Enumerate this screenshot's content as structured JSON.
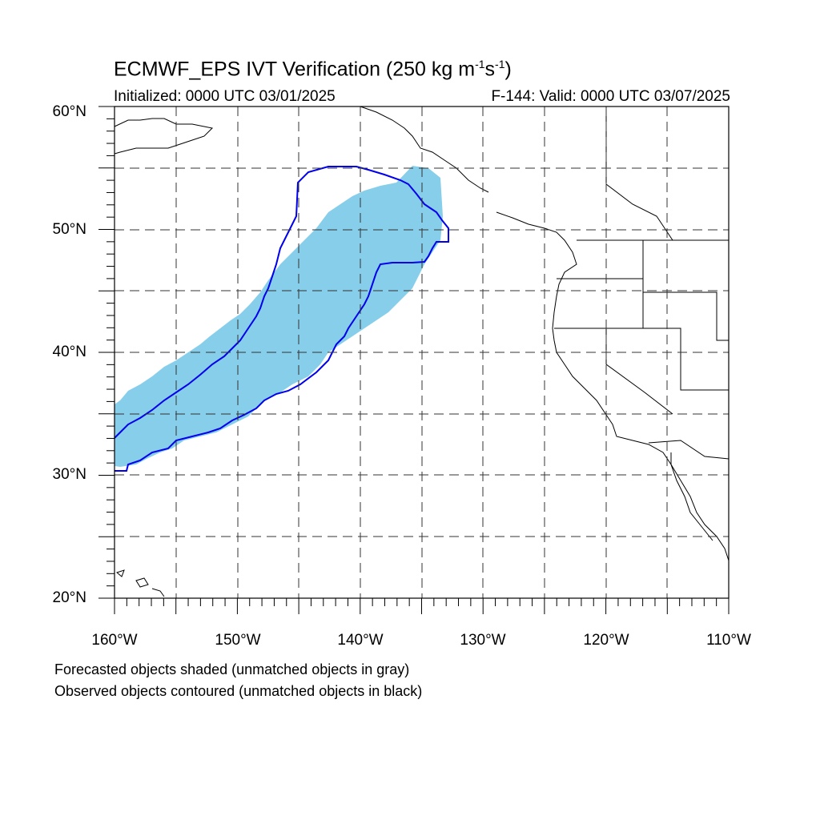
{
  "title": {
    "main": "ECMWF_EPS IVT Verification (250 kg m",
    "exp1": "-1",
    "mid": "s",
    "exp2": "-1",
    "end": ")"
  },
  "subtitle_left": "Initialized: 0000 UTC 03/01/2025",
  "subtitle_right": "F-144: Valid: 0000 UTC 03/07/2025",
  "caption": {
    "line1": "Forecasted objects shaded (unmatched objects in gray)",
    "line2": "Observed objects contoured (unmatched objects in black)"
  },
  "map": {
    "lon_range": [
      -160,
      -110
    ],
    "lat_range": [
      20,
      60
    ],
    "lat_labels": [
      "60°N",
      "50°N",
      "40°N",
      "30°N",
      "20°N"
    ],
    "lon_labels": [
      "160°W",
      "150°W",
      "140°W",
      "130°W",
      "120°W",
      "110°W"
    ],
    "colors": {
      "forecast_fill": "#87ceeb",
      "observed_contour": "#0000ee",
      "grid": "#333333",
      "coast": "#000000"
    }
  }
}
